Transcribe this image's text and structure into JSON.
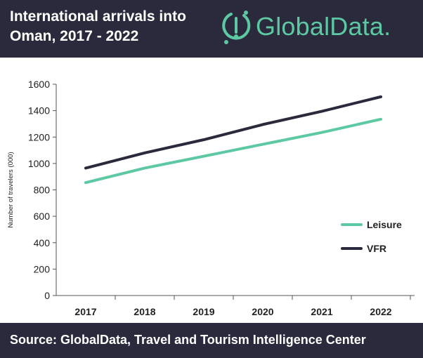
{
  "header": {
    "title": "International arrivals into Oman, 2017 - 2022",
    "logo_text": "GlobalData."
  },
  "footer": {
    "source": "Source:  GlobalData, Travel and Tourism Intelligence Center"
  },
  "colors": {
    "header_bg": "#2b2a3d",
    "brand": "#5cc9a2",
    "leisure": "#5cc9a2",
    "vfr": "#2b2a3d"
  },
  "chart_data": {
    "type": "line",
    "categories": [
      "2017",
      "2018",
      "2019",
      "2020",
      "2021",
      "2022"
    ],
    "series": [
      {
        "name": "Leisure",
        "values": [
          855,
          965,
          1055,
          1145,
          1235,
          1335
        ]
      },
      {
        "name": "VFR",
        "values": [
          965,
          1080,
          1180,
          1295,
          1395,
          1505
        ]
      }
    ],
    "ylabel": "Number of travelers (000)",
    "ylim": [
      0,
      1600
    ],
    "yticks": [
      0,
      200,
      400,
      600,
      800,
      1000,
      1200,
      1400,
      1600
    ],
    "grid": false,
    "legend": "right"
  }
}
